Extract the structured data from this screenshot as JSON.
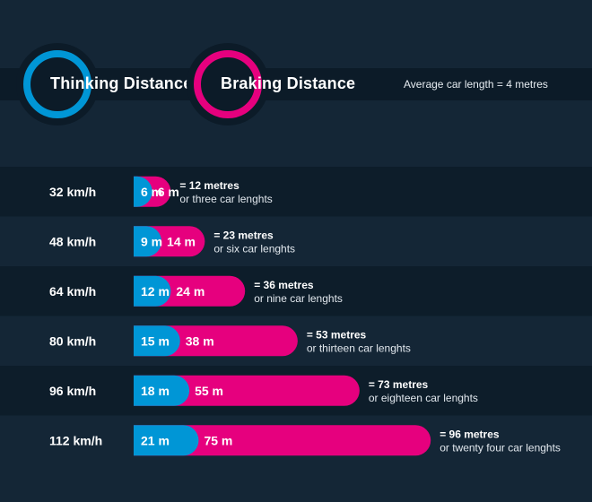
{
  "legend": {
    "thinking": "Thinking Distance",
    "braking": "Braking Distance",
    "note": "Average car length = 4 metres"
  },
  "colors": {
    "thinking": "#0096d6",
    "braking": "#e6007e",
    "row_dark": "#0d1d2a",
    "row_light": "#142636"
  },
  "chart_data": {
    "type": "bar",
    "orientation": "horizontal",
    "stacked": true,
    "categories": [
      "32 km/h",
      "48 km/h",
      "64 km/h",
      "80 km/h",
      "96 km/h",
      "112 km/h"
    ],
    "series": [
      {
        "name": "Thinking Distance",
        "values": [
          6,
          9,
          12,
          15,
          18,
          21
        ],
        "labels": [
          "6 m",
          "9 m",
          "12 m",
          "15 m",
          "18 m",
          "21 m"
        ]
      },
      {
        "name": "Braking Distance",
        "values": [
          6,
          14,
          24,
          38,
          55,
          75
        ],
        "labels": [
          "6 m",
          "14 m",
          "24 m",
          "38 m",
          "55 m",
          "75 m"
        ]
      }
    ],
    "totals": [
      "= 12 metres",
      "= 23 metres",
      "= 36 metres",
      "= 53 metres",
      "= 73 metres",
      "= 96 metres"
    ],
    "descriptions": [
      "or three car lenghts",
      "or six car lenghts",
      "or nine car lenghts",
      "or thirteen car lenghts",
      "or eighteen car lenghts",
      "or twenty four car lenghts"
    ]
  }
}
